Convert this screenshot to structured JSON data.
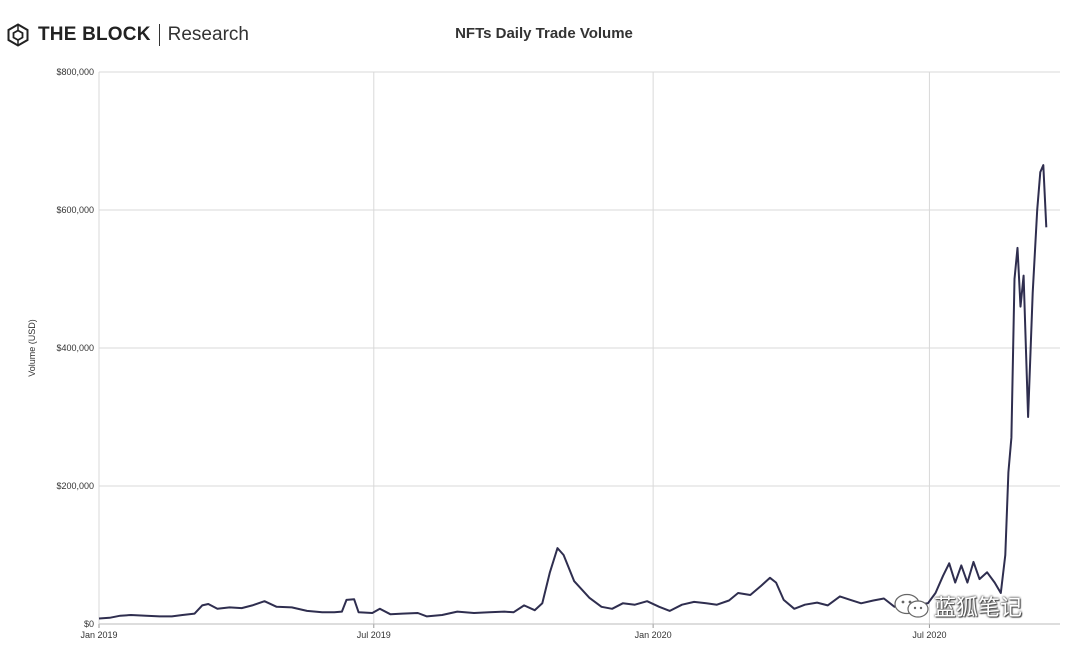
{
  "header": {
    "brand_name": "THE BLOCK",
    "brand_sub": "Research"
  },
  "watermark": {
    "text": "蓝狐笔记",
    "icon": "wechat-icon"
  },
  "colors": {
    "line": "#2f2e4f",
    "grid": "#d9d9d9",
    "text": "#333333"
  },
  "chart_data": {
    "type": "line",
    "title": "NFTs Daily Trade Volume",
    "xlabel": "",
    "ylabel": "Volume (USD)",
    "ylim": [
      0,
      800000
    ],
    "yticks": [
      0,
      200000,
      400000,
      600000,
      800000
    ],
    "ytick_labels": [
      "$0",
      "$200,000",
      "$400,000",
      "$600,000",
      "$800,000"
    ],
    "xlim": [
      "2019-01-01",
      "2020-09-25"
    ],
    "xticks": [
      "2019-01-01",
      "2019-07-01",
      "2020-01-01",
      "2020-07-01"
    ],
    "xtick_labels": [
      "Jan 2019",
      "Jul 2019",
      "Jan 2020",
      "Jul 2020"
    ],
    "grid": true,
    "legend": "none",
    "series": [
      {
        "name": "",
        "points": [
          [
            "2019-01-01",
            8000
          ],
          [
            "2019-01-08",
            9000
          ],
          [
            "2019-01-15",
            12000
          ],
          [
            "2019-01-22",
            13000
          ],
          [
            "2019-02-01",
            12000
          ],
          [
            "2019-02-10",
            11000
          ],
          [
            "2019-02-18",
            11000
          ],
          [
            "2019-02-25",
            13000
          ],
          [
            "2019-03-05",
            15000
          ],
          [
            "2019-03-10",
            27000
          ],
          [
            "2019-03-14",
            29000
          ],
          [
            "2019-03-20",
            22000
          ],
          [
            "2019-03-28",
            24000
          ],
          [
            "2019-04-05",
            23000
          ],
          [
            "2019-04-12",
            27000
          ],
          [
            "2019-04-20",
            33000
          ],
          [
            "2019-04-28",
            25000
          ],
          [
            "2019-05-08",
            24000
          ],
          [
            "2019-05-18",
            19000
          ],
          [
            "2019-05-28",
            17000
          ],
          [
            "2019-06-05",
            17000
          ],
          [
            "2019-06-10",
            18000
          ],
          [
            "2019-06-13",
            35000
          ],
          [
            "2019-06-18",
            36000
          ],
          [
            "2019-06-21",
            17000
          ],
          [
            "2019-06-30",
            16000
          ],
          [
            "2019-07-05",
            22000
          ],
          [
            "2019-07-12",
            14000
          ],
          [
            "2019-07-20",
            15000
          ],
          [
            "2019-07-30",
            16000
          ],
          [
            "2019-08-05",
            11000
          ],
          [
            "2019-08-15",
            13000
          ],
          [
            "2019-08-25",
            18000
          ],
          [
            "2019-09-05",
            16000
          ],
          [
            "2019-09-15",
            17000
          ],
          [
            "2019-09-25",
            18000
          ],
          [
            "2019-10-01",
            17000
          ],
          [
            "2019-10-08",
            27000
          ],
          [
            "2019-10-15",
            20000
          ],
          [
            "2019-10-20",
            30000
          ],
          [
            "2019-10-25",
            75000
          ],
          [
            "2019-10-30",
            110000
          ],
          [
            "2019-11-03",
            100000
          ],
          [
            "2019-11-10",
            62000
          ],
          [
            "2019-11-20",
            38000
          ],
          [
            "2019-11-28",
            25000
          ],
          [
            "2019-12-05",
            22000
          ],
          [
            "2019-12-12",
            30000
          ],
          [
            "2019-12-20",
            28000
          ],
          [
            "2019-12-28",
            33000
          ],
          [
            "2020-01-05",
            25000
          ],
          [
            "2020-01-12",
            19000
          ],
          [
            "2020-01-20",
            28000
          ],
          [
            "2020-01-28",
            32000
          ],
          [
            "2020-02-05",
            30000
          ],
          [
            "2020-02-12",
            28000
          ],
          [
            "2020-02-20",
            34000
          ],
          [
            "2020-02-26",
            45000
          ],
          [
            "2020-03-05",
            42000
          ],
          [
            "2020-03-12",
            55000
          ],
          [
            "2020-03-18",
            67000
          ],
          [
            "2020-03-22",
            60000
          ],
          [
            "2020-03-27",
            35000
          ],
          [
            "2020-04-03",
            22000
          ],
          [
            "2020-04-10",
            28000
          ],
          [
            "2020-04-18",
            31000
          ],
          [
            "2020-04-25",
            27000
          ],
          [
            "2020-05-03",
            40000
          ],
          [
            "2020-05-10",
            35000
          ],
          [
            "2020-05-17",
            30000
          ],
          [
            "2020-05-25",
            34000
          ],
          [
            "2020-06-01",
            37000
          ],
          [
            "2020-06-08",
            25000
          ],
          [
            "2020-06-15",
            32000
          ],
          [
            "2020-06-22",
            28000
          ],
          [
            "2020-06-30",
            30000
          ],
          [
            "2020-07-05",
            45000
          ],
          [
            "2020-07-10",
            70000
          ],
          [
            "2020-07-14",
            88000
          ],
          [
            "2020-07-18",
            60000
          ],
          [
            "2020-07-22",
            85000
          ],
          [
            "2020-07-26",
            60000
          ],
          [
            "2020-07-30",
            90000
          ],
          [
            "2020-08-03",
            65000
          ],
          [
            "2020-08-08",
            75000
          ],
          [
            "2020-08-13",
            60000
          ],
          [
            "2020-08-17",
            45000
          ],
          [
            "2020-08-20",
            100000
          ],
          [
            "2020-08-22",
            220000
          ],
          [
            "2020-08-24",
            270000
          ],
          [
            "2020-08-26",
            500000
          ],
          [
            "2020-08-28",
            545000
          ],
          [
            "2020-08-30",
            460000
          ],
          [
            "2020-09-01",
            505000
          ],
          [
            "2020-09-04",
            300000
          ],
          [
            "2020-09-07",
            480000
          ],
          [
            "2020-09-10",
            600000
          ],
          [
            "2020-09-12",
            655000
          ],
          [
            "2020-09-14",
            665000
          ],
          [
            "2020-09-16",
            575000
          ]
        ]
      }
    ]
  }
}
